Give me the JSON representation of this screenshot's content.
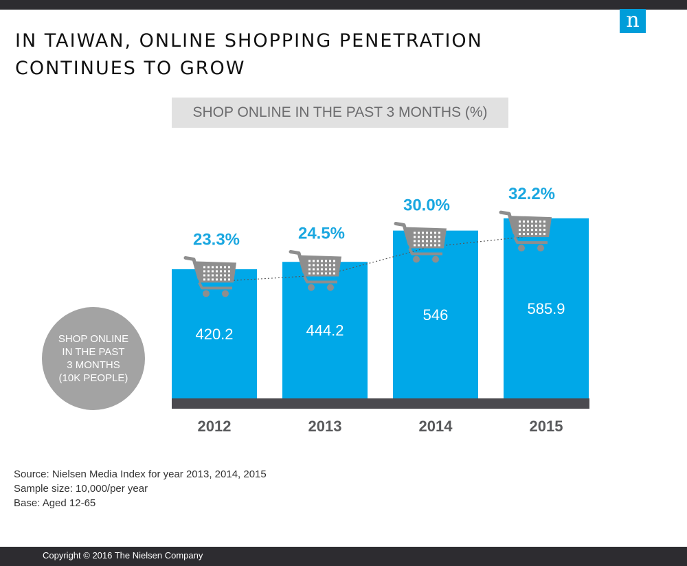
{
  "header": {
    "title_line1": "IN TAIWAN, ONLINE SHOPPING PENETRATION",
    "title_line2": "CONTINUES TO GROW",
    "logo_text": "n",
    "brand_color": "#009dd9"
  },
  "chart_data": {
    "type": "bar",
    "subtitle": "SHOP ONLINE IN THE PAST 3 MONTHS (%)",
    "categories": [
      "2012",
      "2013",
      "2014",
      "2015"
    ],
    "series": [
      {
        "name": "SHOP ONLINE IN THE PAST 3 MONTHS (10K PEOPLE)",
        "values": [
          420.2,
          444.2,
          546,
          585.9
        ],
        "labels": [
          "420.2",
          "444.2",
          "546",
          "585.9"
        ],
        "color": "#00a8e8"
      },
      {
        "name": "SHOP ONLINE IN THE PAST 3 MONTHS (%)",
        "values": [
          23.3,
          24.5,
          30.0,
          32.2
        ],
        "labels": [
          "23.3%",
          "24.5%",
          "30.0%",
          "32.2%"
        ],
        "color": "#1aa7e0",
        "marker": "shopping-cart-icon",
        "trend_line": "dotted"
      }
    ],
    "circle_label_lines": [
      "SHOP ONLINE",
      "IN THE PAST",
      "3 MONTHS",
      "(10K PEOPLE)"
    ],
    "grid": false
  },
  "source": {
    "line1": "Source: Nielsen Media Index for year 2013, 2014, 2015",
    "line2": "Sample size: 10,000/per year",
    "line3": "Base: Aged 12-65"
  },
  "footer": {
    "copyright": "Copyright © 2016 The Nielsen Company"
  }
}
